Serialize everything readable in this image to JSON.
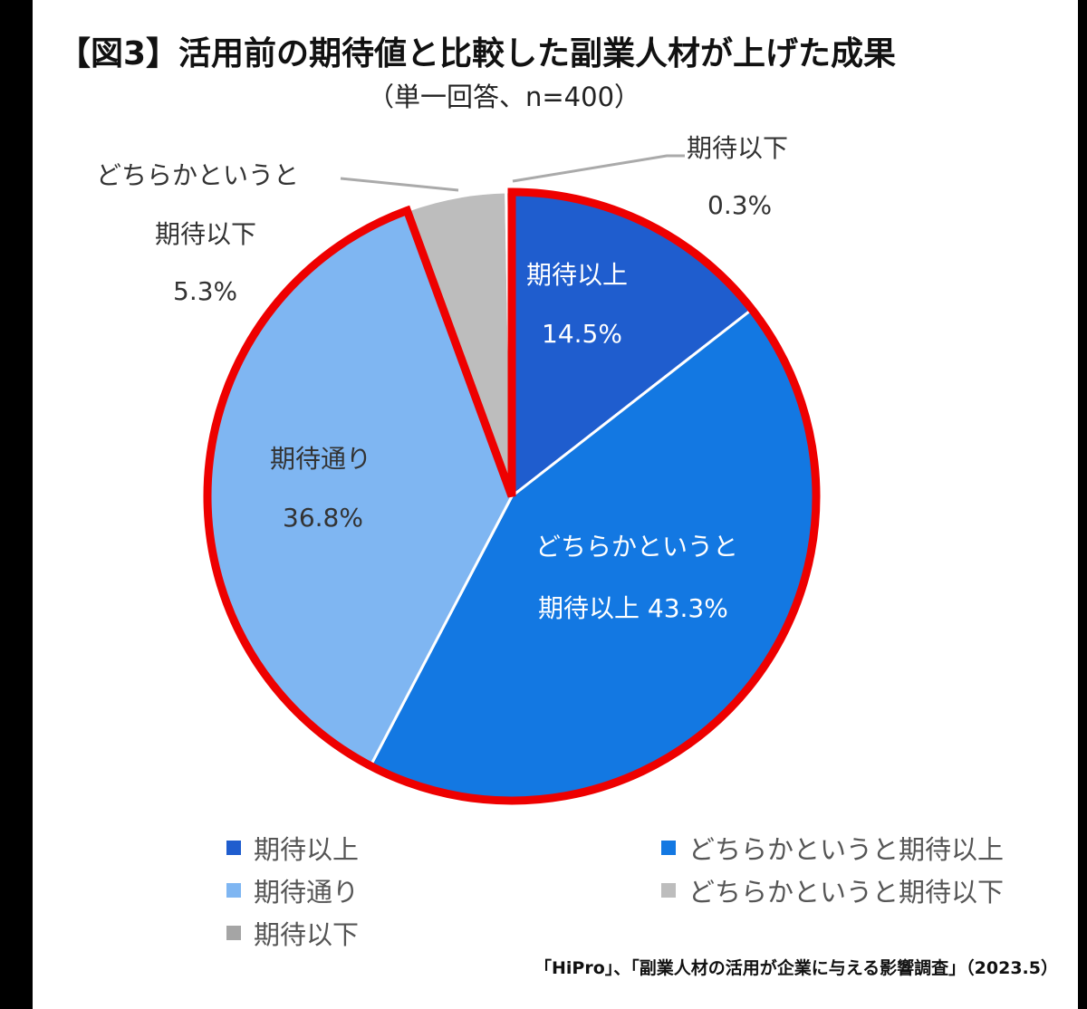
{
  "title": "【図3】活用前の期待値と比較した副業人材が上げた成果",
  "subtitle": "（単一回答、n=400）",
  "chart_data": {
    "type": "pie",
    "start": "12 o'clock, clockwise",
    "slices": [
      {
        "name": "期待以上",
        "value": 14.5,
        "label": "14.5%",
        "color": "#1f5dce"
      },
      {
        "name": "どちらかというと期待以上",
        "value": 43.3,
        "label": "43.3%",
        "color": "#1378e2"
      },
      {
        "name": "期待通り",
        "value": 36.8,
        "label": "36.8%",
        "color": "#7fb6f2"
      },
      {
        "name": "どちらかというと期待以下",
        "value": 5.3,
        "label": "5.3%",
        "color": "#bdbdbd"
      },
      {
        "name": "期待以下",
        "value": 0.3,
        "label": "0.3%",
        "color": "#a5a5a5"
      }
    ],
    "data_labels": {
      "s0": {
        "line1": "期待以上",
        "line2": "14.5%"
      },
      "s1": {
        "line1": "どちらかというと",
        "line2": "期待以上 43.3%"
      },
      "s2": {
        "line1": "期待通り",
        "line2": "36.8%"
      },
      "s3": {
        "line1": "どちらかというと",
        "line2": "期待以下",
        "line3": "5.3%"
      },
      "s4": {
        "line1": "期待以下",
        "line2": "0.3%"
      }
    },
    "highlight": {
      "slices": [
        "期待以上",
        "どちらかというと期待以上",
        "期待通り"
      ],
      "color": "#ee0000"
    },
    "legend": [
      "期待以上",
      "どちらかというと期待以上",
      "期待通り",
      "どちらかというと期待以下",
      "期待以下"
    ],
    "legend_placement": "bottom"
  },
  "source": "「HiPro」、「副業人材の活用が企業に与える影響調査」（2023.5）"
}
